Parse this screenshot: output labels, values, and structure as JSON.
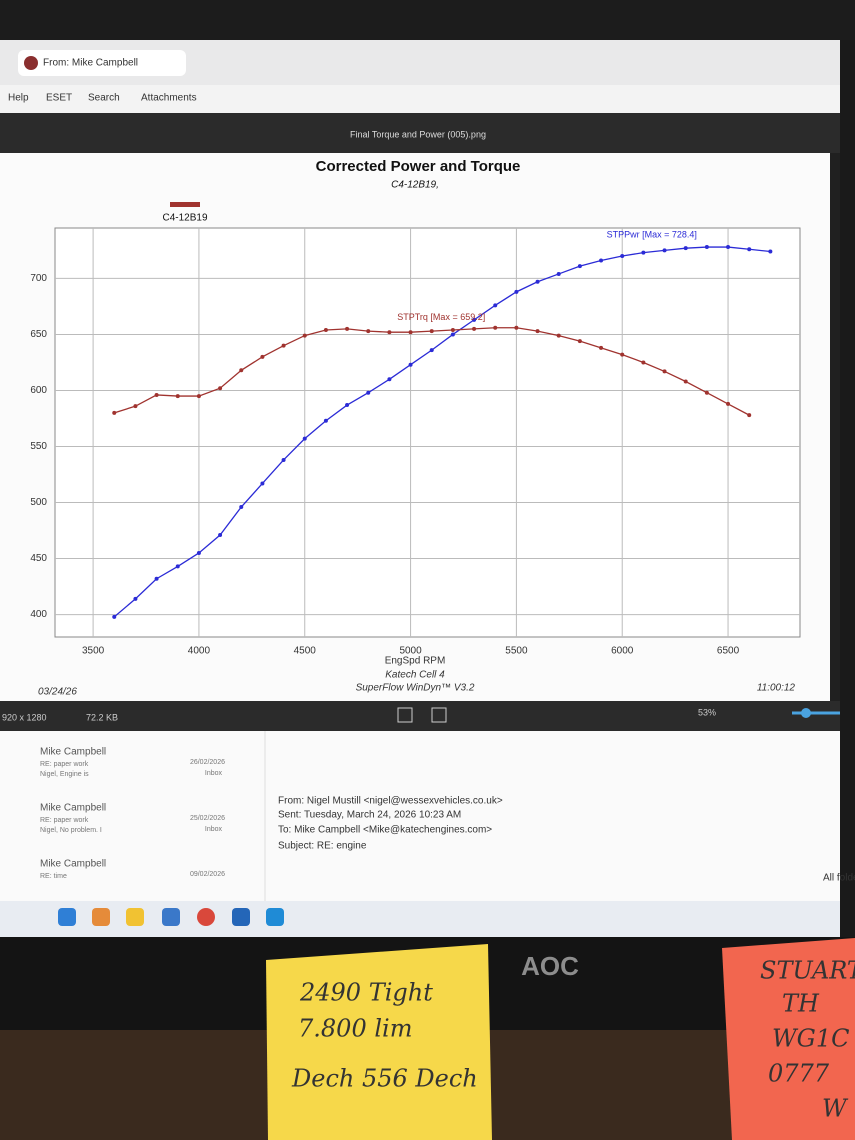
{
  "window": {
    "tab": "From: Mike Campbell",
    "menu": [
      "Help",
      "ESET",
      "Search",
      "Attachments"
    ]
  },
  "viewer": {
    "filename": "Final Torque and Power (005).png",
    "dimensions": "920 x 1280",
    "size": "72.2 KB",
    "zoom": "53%"
  },
  "chart_data": {
    "type": "line",
    "title": "Corrected Power and Torque",
    "subtitle": "C4-12B19,",
    "legend": {
      "label": "C4-12B19",
      "color": "#a0332f"
    },
    "x_label": "EngSpd RPM",
    "footer": [
      "Katech Cell 4",
      "SuperFlow WinDyn™ V3.2"
    ],
    "date": "03/24/26",
    "time": "11:00:12",
    "x": [
      3600,
      3700,
      3800,
      3900,
      4000,
      4100,
      4200,
      4300,
      4400,
      4500,
      4600,
      4700,
      4800,
      4900,
      5000,
      5100,
      5200,
      5300,
      5400,
      5500,
      5600,
      5700,
      5800,
      5900,
      6000,
      6100,
      6200,
      6300,
      6400,
      6500,
      6600,
      6700
    ],
    "series": [
      {
        "name": "STPPwr [Max = 728.4]",
        "color": "#2b2bd6",
        "values": [
          398,
          414,
          432,
          443,
          455,
          471,
          496,
          517,
          538,
          557,
          573,
          587,
          598,
          610,
          623,
          636,
          650,
          663,
          676,
          688,
          697,
          704,
          711,
          716,
          720,
          723,
          725,
          727,
          728,
          728,
          726,
          724
        ]
      },
      {
        "name": "STPTrq [Max = 659.2]",
        "color": "#a0332f",
        "values": [
          580,
          586,
          596,
          595,
          595,
          602,
          618,
          630,
          640,
          649,
          654,
          655,
          653,
          652,
          652,
          653,
          654,
          655,
          656,
          656,
          653,
          649,
          644,
          638,
          632,
          625,
          617,
          608,
          598,
          588,
          578,
          null
        ]
      }
    ],
    "xlim": [
      3320,
      6840
    ],
    "ylim": [
      380,
      745
    ],
    "xticks": [
      3500,
      4000,
      4500,
      5000,
      5500,
      6000,
      6500
    ],
    "yticks": [
      400,
      450,
      500,
      550,
      600,
      650,
      700
    ],
    "grid": true
  },
  "inbox": [
    {
      "sender": "Mike Campbell",
      "subject": "RE: paper work",
      "preview": "Nigel, Engine is",
      "date": "26/02/2026",
      "folder": "Inbox"
    },
    {
      "sender": "Mike Campbell",
      "subject": "RE: paper work",
      "preview": "Nigel, No problem. I",
      "date": "25/02/2026",
      "folder": "Inbox"
    },
    {
      "sender": "Mike Campbell",
      "subject": "RE: time",
      "date": "09/02/2026"
    }
  ],
  "email": {
    "from": "From: Nigel Mustill <nigel@wessexvehicles.co.uk>",
    "sent": "Sent: Tuesday, March 24, 2026 10:23 AM",
    "to": "To: Mike Campbell <Mike@katechengines.com>",
    "subject": "Subject: RE: engine",
    "folders": "All folders"
  },
  "monitor": {
    "brand": "AOC"
  },
  "notes": [
    {
      "lines": [
        "2490 Tight",
        "7.800 lim",
        "Dech 556 Dech"
      ]
    },
    {
      "lines": [
        "STUART",
        "TH",
        "WG1C",
        "0777",
        "W"
      ]
    }
  ]
}
